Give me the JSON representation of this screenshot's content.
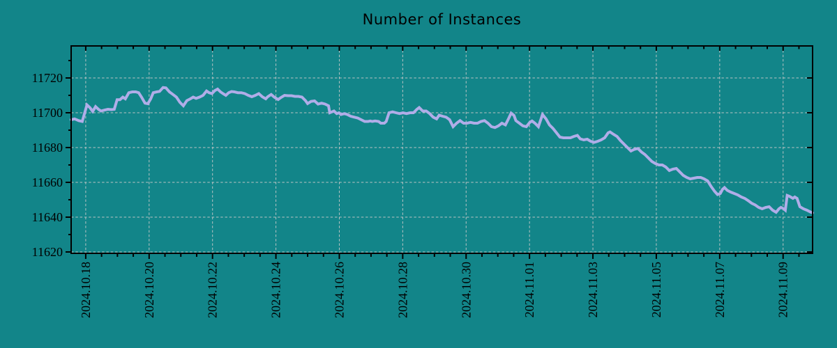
{
  "chart_data": {
    "type": "line",
    "title": "Number of Instances",
    "background_color": "#128589",
    "axes_color": "#000000",
    "grid": {
      "show": true,
      "color": "#b9c3c3",
      "dash": [
        3.5,
        2.8
      ]
    },
    "x_axis": {
      "unit": "days since 2024-10-18",
      "range": [
        -0.46,
        22.93
      ],
      "major_tick_step": 2,
      "minor_tick_step": 0.5,
      "tick_labels": [
        "2024.10.18",
        "2024.10.20",
        "2024.10.22",
        "2024.10.24",
        "2024.10.26",
        "2024.10.28",
        "2024.10.30",
        "2024.11.01",
        "2024.11.03",
        "2024.11.05",
        "2024.11.07",
        "2024.11.09"
      ]
    },
    "y_axis": {
      "range": [
        11619.2,
        11738.4
      ],
      "major_ticks": [
        11620,
        11640,
        11660,
        11680,
        11700,
        11720
      ],
      "minor_tick_step": 10
    },
    "series": [
      {
        "name": "instances",
        "color": "#b0ade8",
        "line_width": 4,
        "points": [
          [
            -0.46,
            11696
          ],
          [
            -0.35,
            11696.5
          ],
          [
            -0.22,
            11695.5
          ],
          [
            -0.11,
            11695
          ],
          [
            0.04,
            11704.5
          ],
          [
            0.13,
            11703
          ],
          [
            0.22,
            11700.8
          ],
          [
            0.31,
            11703.5
          ],
          [
            0.4,
            11702
          ],
          [
            0.48,
            11701
          ],
          [
            0.59,
            11701.5
          ],
          [
            0.7,
            11702
          ],
          [
            0.81,
            11701.8
          ],
          [
            0.9,
            11702
          ],
          [
            0.99,
            11707.5
          ],
          [
            1.08,
            11707.5
          ],
          [
            1.17,
            11709
          ],
          [
            1.25,
            11708
          ],
          [
            1.36,
            11711.5
          ],
          [
            1.47,
            11712
          ],
          [
            1.58,
            11712
          ],
          [
            1.67,
            11711.5
          ],
          [
            1.76,
            11709
          ],
          [
            1.87,
            11705.5
          ],
          [
            1.96,
            11705.2
          ],
          [
            2.05,
            11708
          ],
          [
            2.13,
            11711.5
          ],
          [
            2.24,
            11712
          ],
          [
            2.33,
            11712.3
          ],
          [
            2.44,
            11714.5
          ],
          [
            2.53,
            11714.3
          ],
          [
            2.64,
            11712
          ],
          [
            2.75,
            11710.5
          ],
          [
            2.86,
            11709
          ],
          [
            2.97,
            11706
          ],
          [
            3.08,
            11704
          ],
          [
            3.19,
            11707
          ],
          [
            3.3,
            11708
          ],
          [
            3.39,
            11709
          ],
          [
            3.48,
            11708.3
          ],
          [
            3.59,
            11709
          ],
          [
            3.7,
            11710
          ],
          [
            3.81,
            11712.5
          ],
          [
            3.89,
            11711.5
          ],
          [
            3.98,
            11711
          ],
          [
            4.07,
            11712.7
          ],
          [
            4.16,
            11713.6
          ],
          [
            4.25,
            11712
          ],
          [
            4.33,
            11711
          ],
          [
            4.42,
            11710
          ],
          [
            4.51,
            11711.5
          ],
          [
            4.6,
            11712.2
          ],
          [
            4.69,
            11712
          ],
          [
            4.8,
            11711.5
          ],
          [
            4.91,
            11711.5
          ],
          [
            5.02,
            11711
          ],
          [
            5.13,
            11710
          ],
          [
            5.24,
            11709.2
          ],
          [
            5.35,
            11710
          ],
          [
            5.46,
            11711
          ],
          [
            5.57,
            11709.2
          ],
          [
            5.68,
            11708
          ],
          [
            5.74,
            11709.2
          ],
          [
            5.85,
            11710.5
          ],
          [
            5.96,
            11708.8
          ],
          [
            6.07,
            11707.6
          ],
          [
            6.16,
            11708.8
          ],
          [
            6.27,
            11710
          ],
          [
            6.38,
            11709.8
          ],
          [
            6.49,
            11709.8
          ],
          [
            6.6,
            11709.4
          ],
          [
            6.71,
            11709.4
          ],
          [
            6.82,
            11709
          ],
          [
            6.93,
            11707
          ],
          [
            7,
            11705.3
          ],
          [
            7.11,
            11706.5
          ],
          [
            7.22,
            11706.8
          ],
          [
            7.33,
            11705
          ],
          [
            7.44,
            11705.5
          ],
          [
            7.55,
            11705
          ],
          [
            7.66,
            11704
          ],
          [
            7.7,
            11700
          ],
          [
            7.77,
            11700.5
          ],
          [
            7.83,
            11701
          ],
          [
            7.92,
            11699.5
          ],
          [
            7.99,
            11700
          ],
          [
            8.05,
            11699
          ],
          [
            8.16,
            11699.5
          ],
          [
            8.25,
            11699
          ],
          [
            8.36,
            11698
          ],
          [
            8.47,
            11697.5
          ],
          [
            8.58,
            11697
          ],
          [
            8.69,
            11696
          ],
          [
            8.8,
            11695
          ],
          [
            8.91,
            11695
          ],
          [
            8.98,
            11695.3
          ],
          [
            9.04,
            11695
          ],
          [
            9.13,
            11695.3
          ],
          [
            9.24,
            11695
          ],
          [
            9.31,
            11694
          ],
          [
            9.42,
            11694
          ],
          [
            9.48,
            11695
          ],
          [
            9.57,
            11700
          ],
          [
            9.68,
            11700.5
          ],
          [
            9.79,
            11700
          ],
          [
            9.9,
            11699.5
          ],
          [
            10.01,
            11700
          ],
          [
            10.12,
            11699.5
          ],
          [
            10.23,
            11700
          ],
          [
            10.34,
            11700
          ],
          [
            10.45,
            11702
          ],
          [
            10.52,
            11703
          ],
          [
            10.63,
            11701
          ],
          [
            10.74,
            11701
          ],
          [
            10.85,
            11699.5
          ],
          [
            10.96,
            11697.5
          ],
          [
            11.07,
            11696.5
          ],
          [
            11.15,
            11698.6
          ],
          [
            11.26,
            11698
          ],
          [
            11.37,
            11697.5
          ],
          [
            11.48,
            11696
          ],
          [
            11.59,
            11692
          ],
          [
            11.7,
            11694
          ],
          [
            11.81,
            11695.5
          ],
          [
            11.92,
            11694
          ],
          [
            12.03,
            11694
          ],
          [
            12.14,
            11694.5
          ],
          [
            12.25,
            11694
          ],
          [
            12.36,
            11694
          ],
          [
            12.47,
            11695
          ],
          [
            12.58,
            11695.5
          ],
          [
            12.69,
            11694
          ],
          [
            12.8,
            11692
          ],
          [
            12.91,
            11691.5
          ],
          [
            13.02,
            11692.5
          ],
          [
            13.13,
            11694
          ],
          [
            13.24,
            11693
          ],
          [
            13.35,
            11697
          ],
          [
            13.42,
            11699.8
          ],
          [
            13.51,
            11698.5
          ],
          [
            13.57,
            11695.5
          ],
          [
            13.68,
            11694
          ],
          [
            13.79,
            11692.5
          ],
          [
            13.9,
            11692
          ],
          [
            14.01,
            11694.5
          ],
          [
            14.08,
            11695.3
          ],
          [
            14.17,
            11694
          ],
          [
            14.28,
            11692
          ],
          [
            14.41,
            11699
          ],
          [
            14.52,
            11696.5
          ],
          [
            14.63,
            11693
          ],
          [
            14.74,
            11691
          ],
          [
            14.85,
            11688.5
          ],
          [
            14.96,
            11686
          ],
          [
            15.07,
            11685.6
          ],
          [
            15.18,
            11685.6
          ],
          [
            15.29,
            11685.6
          ],
          [
            15.4,
            11686.4
          ],
          [
            15.51,
            11687
          ],
          [
            15.6,
            11685
          ],
          [
            15.71,
            11684.4
          ],
          [
            15.82,
            11684.8
          ],
          [
            15.93,
            11683.6
          ],
          [
            16.04,
            11683
          ],
          [
            16.15,
            11683.6
          ],
          [
            16.26,
            11684.4
          ],
          [
            16.37,
            11685.6
          ],
          [
            16.48,
            11688.5
          ],
          [
            16.54,
            11689
          ],
          [
            16.65,
            11687.6
          ],
          [
            16.76,
            11686.4
          ],
          [
            16.87,
            11684
          ],
          [
            16.98,
            11682
          ],
          [
            17.09,
            11680
          ],
          [
            17.2,
            11678
          ],
          [
            17.31,
            11679
          ],
          [
            17.42,
            11679.5
          ],
          [
            17.53,
            11677.5
          ],
          [
            17.64,
            11676
          ],
          [
            17.75,
            11674
          ],
          [
            17.86,
            11672
          ],
          [
            17.97,
            11670.8
          ],
          [
            18.08,
            11670
          ],
          [
            18.19,
            11670
          ],
          [
            18.3,
            11668.8
          ],
          [
            18.41,
            11666.8
          ],
          [
            18.52,
            11667.6
          ],
          [
            18.63,
            11668
          ],
          [
            18.74,
            11666
          ],
          [
            18.85,
            11664
          ],
          [
            18.96,
            11662.8
          ],
          [
            19.07,
            11662
          ],
          [
            19.18,
            11662.4
          ],
          [
            19.29,
            11662.8
          ],
          [
            19.4,
            11662.8
          ],
          [
            19.51,
            11662
          ],
          [
            19.62,
            11660.8
          ],
          [
            19.73,
            11657.6
          ],
          [
            19.84,
            11654.8
          ],
          [
            19.93,
            11653
          ],
          [
            20.02,
            11653.6
          ],
          [
            20.09,
            11656
          ],
          [
            20.15,
            11657
          ],
          [
            20.24,
            11655.4
          ],
          [
            20.35,
            11654.4
          ],
          [
            20.46,
            11653.6
          ],
          [
            20.57,
            11652.8
          ],
          [
            20.68,
            11651.6
          ],
          [
            20.79,
            11650.8
          ],
          [
            20.9,
            11649.5
          ],
          [
            21.01,
            11648
          ],
          [
            21.12,
            11647
          ],
          [
            21.23,
            11645.6
          ],
          [
            21.34,
            11644.8
          ],
          [
            21.45,
            11645.6
          ],
          [
            21.56,
            11646
          ],
          [
            21.67,
            11644
          ],
          [
            21.78,
            11642.8
          ],
          [
            21.87,
            11644.8
          ],
          [
            21.93,
            11645.6
          ],
          [
            22.02,
            11644.8
          ],
          [
            22.07,
            11644
          ],
          [
            22.13,
            11652.5
          ],
          [
            22.2,
            11652
          ],
          [
            22.31,
            11650.8
          ],
          [
            22.37,
            11651.6
          ],
          [
            22.44,
            11650.8
          ],
          [
            22.53,
            11646
          ],
          [
            22.64,
            11644.8
          ],
          [
            22.75,
            11644
          ],
          [
            22.86,
            11643
          ],
          [
            22.93,
            11642.5
          ]
        ]
      }
    ]
  }
}
